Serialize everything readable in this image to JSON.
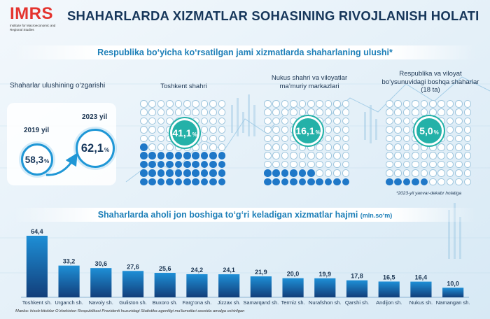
{
  "header": {
    "logo_text": "IMRS",
    "logo_sub": "Institute for Macroeconomic and Regional Studies",
    "title": "SHAHARLARDA XIZMATLAR SOHASINING RIVOJLANISH HOLATI"
  },
  "section1": {
    "banner": "Respublika bo‘yicha ko‘rsatilgan jami xizmatlarda shaharlaning ulushi*"
  },
  "change": {
    "title": "Shaharlar ulushining o‘zgarishi",
    "year_a": "2019 yil",
    "value_a": "58,3",
    "year_b": "2023 yil",
    "value_b": "62,1",
    "pct": "%"
  },
  "waffles": [
    {
      "title": "Toshkent shahri",
      "value": 41.1,
      "label": "41,1",
      "filled_dots": 41
    },
    {
      "title": "Nukus shahri va viloyatlar ma’muriy markazlari",
      "value": 16.1,
      "label": "16,1",
      "filled_dots": 16
    },
    {
      "title": "Respublika va viloyat bo‘ysunuvidagi boshqa shaharlar (18 ta)",
      "value": 5.0,
      "label": "5,0",
      "filled_dots": 5
    }
  ],
  "footnote": "*2023-yil yanvar-dekabr holatiga",
  "section2": {
    "banner": "Shaharlarda aholi jon boshiga to‘g‘ri keladigan xizmatlar hajmi",
    "unit": "(mln.so‘m)"
  },
  "chart_data": {
    "type": "bar",
    "title": "Shaharlarda aholi jon boshiga to‘g‘ri keladigan xizmatlar hajmi (mln.so‘m)",
    "categories": [
      "Toshkent sh.",
      "Urganch sh.",
      "Navoiy sh.",
      "Guliston sh.",
      "Buxoro sh.",
      "Farg‘ona sh.",
      "Jizzax sh.",
      "Samarqand sh.",
      "Termiz sh.",
      "Nurafshon sh.",
      "Qarshi sh.",
      "Andijon sh.",
      "Nukus sh.",
      "Namangan sh."
    ],
    "values": [
      64.4,
      33.2,
      30.6,
      27.6,
      25.6,
      24.2,
      24.1,
      21.9,
      20.0,
      19.9,
      17.8,
      16.5,
      16.4,
      10.0
    ],
    "value_labels": [
      "64,4",
      "33,2",
      "30,6",
      "27,6",
      "25,6",
      "24,2",
      "24,1",
      "21,9",
      "20,0",
      "19,9",
      "17,8",
      "16,5",
      "16,4",
      "10,0"
    ],
    "ylim": [
      0,
      64.4
    ],
    "xlabel": "",
    "ylabel": "mln.so‘m"
  },
  "source": "Manba: hisob-kitoblar O‘zbekiston Respublikasi Prezidenti huzuridagi Statistika agentligi ma’lumotlari asosida amalga oshirilgan",
  "colors": {
    "accent": "#1f78c8",
    "teal": "#24b1a8",
    "title": "#16365a",
    "logo": "#e4332e",
    "bar_top": "#1e8fd6",
    "bar_bottom": "#123e7a"
  }
}
